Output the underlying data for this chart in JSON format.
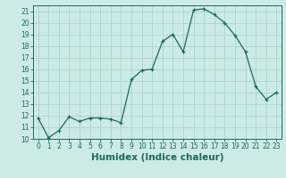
{
  "x": [
    0,
    1,
    2,
    3,
    4,
    5,
    6,
    7,
    8,
    9,
    10,
    11,
    12,
    13,
    14,
    15,
    16,
    17,
    18,
    19,
    20,
    21,
    22,
    23
  ],
  "y": [
    11.8,
    10.1,
    10.7,
    11.9,
    11.5,
    11.8,
    11.8,
    11.7,
    11.4,
    15.1,
    15.9,
    16.0,
    18.4,
    19.0,
    17.5,
    21.1,
    21.2,
    20.7,
    20.0,
    18.9,
    17.5,
    14.5,
    13.4,
    14.0
  ],
  "line_color": "#1a6b5a",
  "marker": "+",
  "marker_size": 3,
  "bg_color": "#cceae8",
  "grid_color": "#aad4d0",
  "xlabel": "Humidex (Indice chaleur)",
  "ylim": [
    10,
    21.5
  ],
  "xlim": [
    -0.5,
    23.5
  ],
  "yticks": [
    10,
    11,
    12,
    13,
    14,
    15,
    16,
    17,
    18,
    19,
    20,
    21
  ],
  "xticks": [
    0,
    1,
    2,
    3,
    4,
    5,
    6,
    7,
    8,
    9,
    10,
    11,
    12,
    13,
    14,
    15,
    16,
    17,
    18,
    19,
    20,
    21,
    22,
    23
  ],
  "tick_fontsize": 5.5,
  "xlabel_fontsize": 7.5
}
